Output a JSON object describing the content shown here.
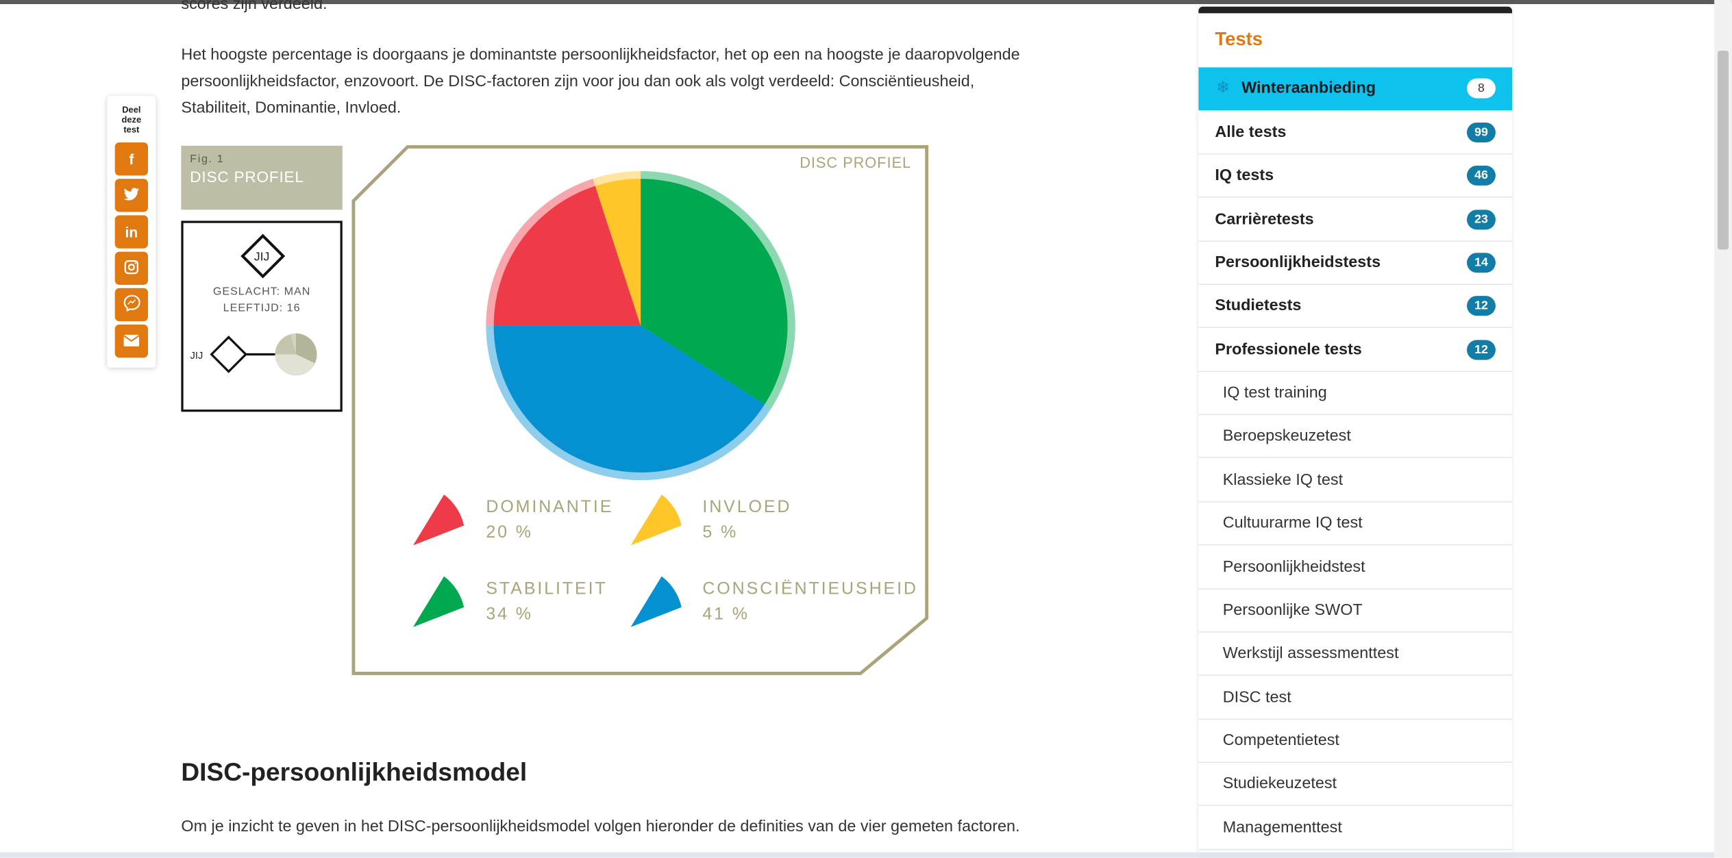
{
  "intro": {
    "cut_line": "scores zijn verdeeld.",
    "paragraph_lines": [
      "Het hoogste percentage is doorgaans je dominantste persoonlijkheidsfactor, het op een na hoogste je daaropvolgende",
      "persoonlijkheidsfactor, enzovoort. De DISC-factoren zijn voor jou dan ook als volgt verdeeld: Consciëntieusheid,",
      "Stabiliteit, Dominantie, Invloed."
    ]
  },
  "share": {
    "title_lines": [
      "Deel",
      "deze",
      "test"
    ],
    "buttons": [
      {
        "icon": "facebook-icon",
        "glyph": "f"
      },
      {
        "icon": "twitter-icon",
        "glyph": "t"
      },
      {
        "icon": "linkedin-icon",
        "glyph": "in"
      },
      {
        "icon": "instagram-icon",
        "glyph": "◎"
      },
      {
        "icon": "messenger-icon",
        "glyph": "✉"
      },
      {
        "icon": "email-icon",
        "glyph": "✉"
      }
    ]
  },
  "figure": {
    "number": "Fig. 1",
    "title": "DISC PROFIEL",
    "caption": "DISC PROFIEL",
    "badge": "JIJ",
    "gender": "GESLACHT: MAN",
    "age": "LEEFTIJD: 16"
  },
  "chart_data": {
    "type": "pie",
    "title": "DISC PROFIEL",
    "slices": [
      {
        "name": "STABILITEIT",
        "value": 34,
        "label": "34 %",
        "color": "#00a94f"
      },
      {
        "name": "CONSCIËNTIEUSHEID",
        "value": 41,
        "label": "41 %",
        "color": "#0590d2"
      },
      {
        "name": "DOMINANTIE",
        "value": 20,
        "label": "20 %",
        "color": "#ef3a47"
      },
      {
        "name": "INVLOED",
        "value": 5,
        "label": "5 %",
        "color": "#ffc629"
      }
    ]
  },
  "legend": [
    {
      "name": "DOMINANTIE",
      "value": "20 %",
      "color": "#ef3a47"
    },
    {
      "name": "INVLOED",
      "value": "5 %",
      "color": "#ffc629"
    },
    {
      "name": "STABILITEIT",
      "value": "34 %",
      "color": "#00a94f"
    },
    {
      "name": "CONSCIËNTIEUSHEID",
      "value": "41 %",
      "color": "#0590d2"
    }
  ],
  "section": {
    "heading": "DISC-persoonlijkheidsmodel",
    "text": "Om je inzicht te geven in het DISC-persoonlijkheidsmodel volgen hieronder de definities van de vier gemeten factoren."
  },
  "sidebar": {
    "title": "Tests",
    "categories": [
      {
        "label": "Winteraanbieding",
        "count": "8"
      },
      {
        "label": "Alle tests",
        "count": "99"
      },
      {
        "label": "IQ tests",
        "count": "46"
      },
      {
        "label": "Carrièretests",
        "count": "23"
      },
      {
        "label": "Persoonlijkheidstests",
        "count": "14"
      },
      {
        "label": "Studietests",
        "count": "12"
      },
      {
        "label": "Professionele tests",
        "count": "12"
      }
    ],
    "subitems": [
      "IQ test training",
      "Beroepskeuzetest",
      "Klassieke IQ test",
      "Cultuurarme IQ test",
      "Persoonlijkheidstest",
      "Persoonlijke SWOT",
      "Werkstijl assessmenttest",
      "DISC test",
      "Competentietest",
      "Studiekeuzetest",
      "Managementtest"
    ]
  },
  "colors": {
    "accent": "#e07a10",
    "badge": "#127ea8",
    "winter": "#0dc3ee",
    "frame": "#a9a479"
  }
}
